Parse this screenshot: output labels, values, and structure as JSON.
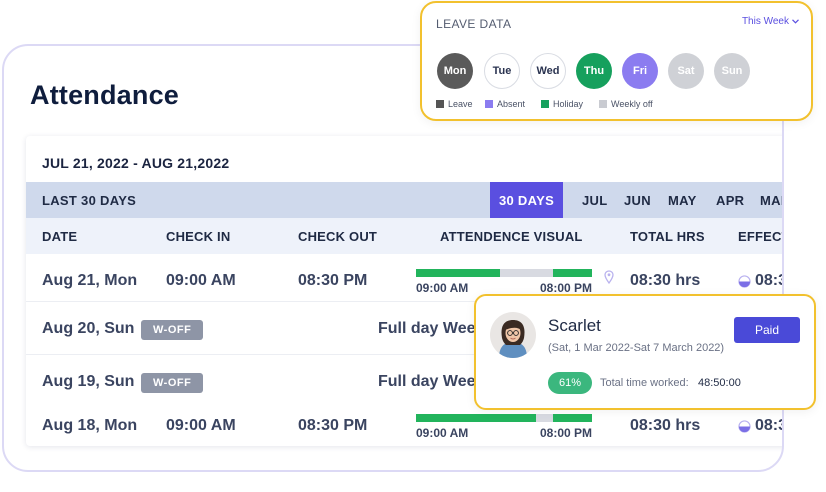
{
  "page": {
    "title": "Attendance"
  },
  "table": {
    "date_range": "JUL 21, 2022 - AUG 21,2022",
    "filter_label": "LAST 30 DAYS",
    "active_filter": "30 DAYS",
    "months": [
      "JUL",
      "JUN",
      "MAY",
      "APR",
      "MAR"
    ],
    "columns": [
      "DATE",
      "CHECK IN",
      "CHECK OUT",
      "ATTENDENCE VISUAL",
      "TOTAL HRS",
      "EFFECTI"
    ],
    "rows": [
      {
        "date": "Aug 21, Mon",
        "check_in": "09:00 AM",
        "check_out": "08:30 PM",
        "visual_start": "09:00 AM",
        "visual_end": "08:00 PM",
        "total": "08:30 hrs",
        "effective": "08:3",
        "green1": 0.48,
        "gray": 0.3,
        "green2": 0.22
      },
      {
        "date": "Aug 20, Sun",
        "badge": "W-OFF",
        "note": "Full day Week"
      },
      {
        "date": "Aug 19, Sun",
        "badge": "W-OFF",
        "note": "Full day Week"
      },
      {
        "date": "Aug 18, Mon",
        "check_in": "09:00 AM",
        "check_out": "08:30 PM",
        "visual_start": "09:00 AM",
        "visual_end": "08:00 PM",
        "total": "08:30 hrs",
        "effective": "08:3",
        "green1": 0.68,
        "gray": 0.1,
        "green2": 0.22
      }
    ]
  },
  "leave_data": {
    "title": "LEAVE DATA",
    "period": "This Week",
    "days": [
      {
        "label": "Mon",
        "status": "leave"
      },
      {
        "label": "Tue",
        "status": "present"
      },
      {
        "label": "Wed",
        "status": "present"
      },
      {
        "label": "Thu",
        "status": "holiday"
      },
      {
        "label": "Fri",
        "status": "absent"
      },
      {
        "label": "Sat",
        "status": "weekly-off"
      },
      {
        "label": "Sun",
        "status": "weekly-off"
      }
    ],
    "legend": [
      {
        "label": "Leave",
        "color": "#555555"
      },
      {
        "label": "Absent",
        "color": "#8b7cf0"
      },
      {
        "label": "Holiday",
        "color": "#16a05d"
      },
      {
        "label": "Weekly off",
        "color": "#c9cbd1"
      }
    ]
  },
  "profile": {
    "name": "Scarlet",
    "period": "(Sat, 1 Mar 2022-Sat 7 March 2022)",
    "status_button": "Paid",
    "percent": "61%",
    "total_label": "Total time worked:",
    "total_value": "48:50:00"
  },
  "colors": {
    "accent": "#5a4fe0",
    "highlight_border": "#f2c12e",
    "present_green": "#22b45c"
  }
}
